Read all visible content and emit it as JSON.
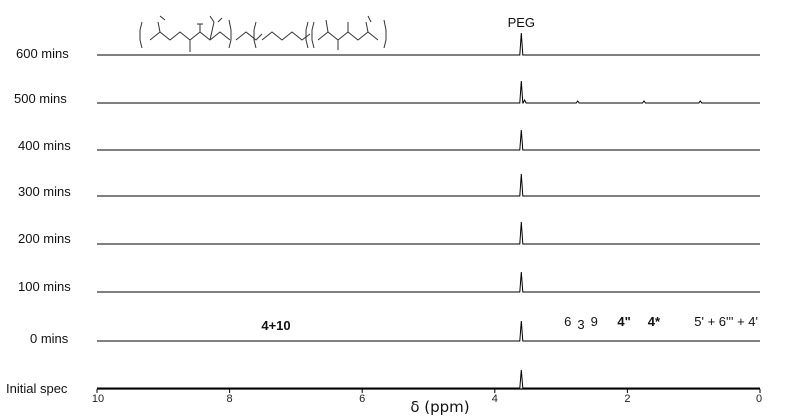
{
  "chart_data": {
    "type": "line",
    "description_kind": "stacked NMR spectra",
    "xlabel": "δ (ppm)",
    "xlim": [
      10,
      0
    ],
    "x_reversed": true,
    "xticks": [
      {
        "value": 10,
        "label": "10"
      },
      {
        "value": 8,
        "label": "8"
      },
      {
        "value": 6,
        "label": "6"
      },
      {
        "value": 4,
        "label": "4"
      },
      {
        "value": 2,
        "label": "2"
      },
      {
        "value": 0,
        "label": "0"
      }
    ],
    "series": [
      {
        "name": "600 mins",
        "peaks": [
          {
            "ppm": 3.6,
            "height": 22
          }
        ]
      },
      {
        "name": "500 mins",
        "peaks": [
          {
            "ppm": 3.6,
            "height": 22
          },
          {
            "ppm": 3.55,
            "height": 3
          },
          {
            "ppm": 2.75,
            "height": 2
          },
          {
            "ppm": 1.75,
            "height": 2
          },
          {
            "ppm": 0.9,
            "height": 2
          }
        ]
      },
      {
        "name": "400 mins",
        "peaks": [
          {
            "ppm": 3.6,
            "height": 20
          }
        ]
      },
      {
        "name": "300 mins",
        "peaks": [
          {
            "ppm": 3.6,
            "height": 22
          }
        ]
      },
      {
        "name": "200 mins",
        "peaks": [
          {
            "ppm": 3.6,
            "height": 22
          }
        ]
      },
      {
        "name": "100 mins",
        "peaks": [
          {
            "ppm": 3.6,
            "height": 20
          }
        ]
      },
      {
        "name": "0 mins",
        "peaks": [
          {
            "ppm": 3.6,
            "height": 20
          }
        ]
      },
      {
        "name": "Initial spec",
        "peaks": [
          {
            "ppm": 3.6,
            "height": 18
          }
        ]
      }
    ],
    "annotations": [
      {
        "text": "PEG",
        "ppm": 3.6,
        "row": "600 mins",
        "style": "plain"
      },
      {
        "text": "4+10",
        "ppm": 7.3,
        "row": "0 mins",
        "style": "bold"
      },
      {
        "text": "6",
        "ppm": 2.9,
        "row": "0 mins",
        "style": "plain"
      },
      {
        "text": "3",
        "ppm": 2.7,
        "row": "0 mins",
        "style": "plain"
      },
      {
        "text": "9",
        "ppm": 2.5,
        "row": "0 mins",
        "style": "plain"
      },
      {
        "text": "4\"",
        "ppm": 2.05,
        "row": "0 mins",
        "style": "bold"
      },
      {
        "text": "4*",
        "ppm": 1.6,
        "row": "0 mins",
        "style": "bold"
      },
      {
        "text": "5' + 6''' + 4'",
        "ppm": 0.4,
        "row": "0 mins",
        "style": "plain"
      }
    ]
  },
  "structure_icon": "polymer-structure-sketch"
}
